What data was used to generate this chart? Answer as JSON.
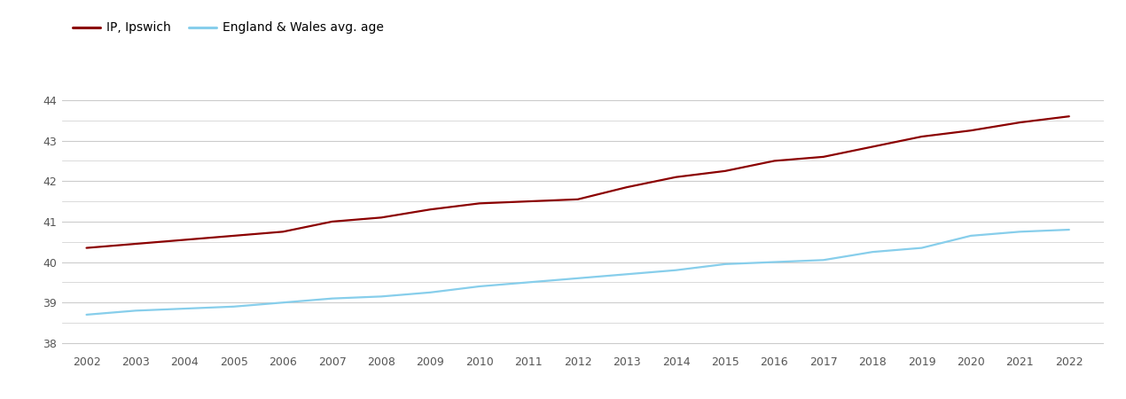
{
  "years": [
    2002,
    2003,
    2004,
    2005,
    2006,
    2007,
    2008,
    2009,
    2010,
    2011,
    2012,
    2013,
    2014,
    2015,
    2016,
    2017,
    2018,
    2019,
    2020,
    2021,
    2022
  ],
  "ipswich": [
    40.35,
    40.45,
    40.55,
    40.65,
    40.75,
    41.0,
    41.1,
    41.3,
    41.45,
    41.5,
    41.55,
    41.85,
    42.1,
    42.25,
    42.5,
    42.6,
    42.85,
    43.1,
    43.25,
    43.45,
    43.6
  ],
  "england_wales": [
    38.7,
    38.8,
    38.85,
    38.9,
    39.0,
    39.1,
    39.15,
    39.25,
    39.4,
    39.5,
    39.6,
    39.7,
    39.8,
    39.95,
    40.0,
    40.05,
    40.25,
    40.35,
    40.65,
    40.75,
    40.8
  ],
  "ipswich_color": "#8B0000",
  "england_wales_color": "#87CEEB",
  "background_color": "#ffffff",
  "grid_color": "#cccccc",
  "ylim": [
    37.8,
    44.7
  ],
  "yticks": [
    38,
    39,
    40,
    41,
    42,
    43,
    44
  ],
  "legend_label_ipswich": "IP, Ipswich",
  "legend_label_ew": "England & Wales avg. age",
  "line_width": 1.6,
  "figsize": [
    12.7,
    4.5
  ],
  "dpi": 100
}
